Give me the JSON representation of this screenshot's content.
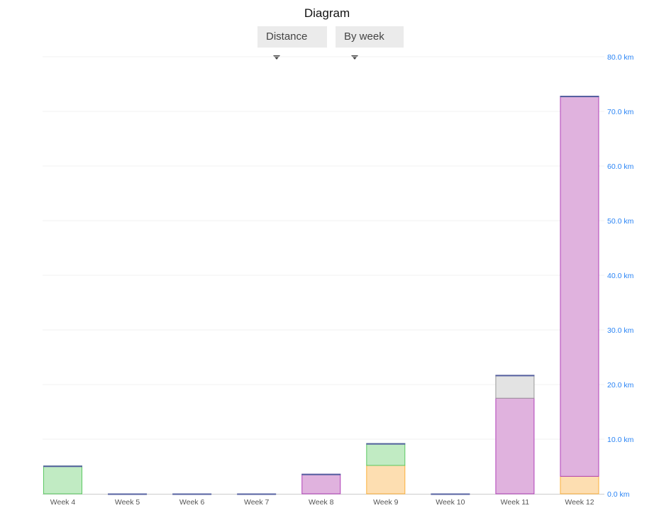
{
  "chart_data": {
    "type": "bar",
    "stacked": true,
    "title": "Diagram",
    "categories": [
      "Week 4",
      "Week 5",
      "Week 6",
      "Week 7",
      "Week 8",
      "Week 9",
      "Week 10",
      "Week 11",
      "Week 12"
    ],
    "series": [
      {
        "color": "#fbb03b",
        "fill": "#fddeb1",
        "values": [
          0,
          0,
          0,
          0,
          0,
          5.2,
          0,
          0,
          3.2
        ]
      },
      {
        "color": "#b040b8",
        "fill": "#e0b2de",
        "values": [
          0,
          0,
          0,
          0,
          3.6,
          0,
          0,
          17.5,
          69.6
        ]
      },
      {
        "color": "#5cc862",
        "fill": "#c1ebc3",
        "values": [
          5.1,
          0,
          0,
          0,
          0,
          4.0,
          0,
          0,
          0
        ]
      },
      {
        "color": "#999999",
        "fill": "#e3e3e3",
        "values": [
          0,
          0,
          0,
          0,
          0,
          0,
          0,
          4.2,
          0
        ]
      }
    ],
    "ylim": [
      0,
      80
    ],
    "yticks": [
      "0.0 km",
      "10.0 km",
      "20.0 km",
      "30.0 km",
      "40.0 km",
      "50.0 km",
      "60.0 km",
      "70.0 km",
      "80.0 km"
    ],
    "ytick_values": [
      0,
      10,
      20,
      30,
      40,
      50,
      60,
      70,
      80
    ],
    "y_axis_position": "right",
    "grid": true,
    "xlabel": "",
    "ylabel": ""
  },
  "controls": {
    "metric": "Distance",
    "grouping": "By week"
  }
}
